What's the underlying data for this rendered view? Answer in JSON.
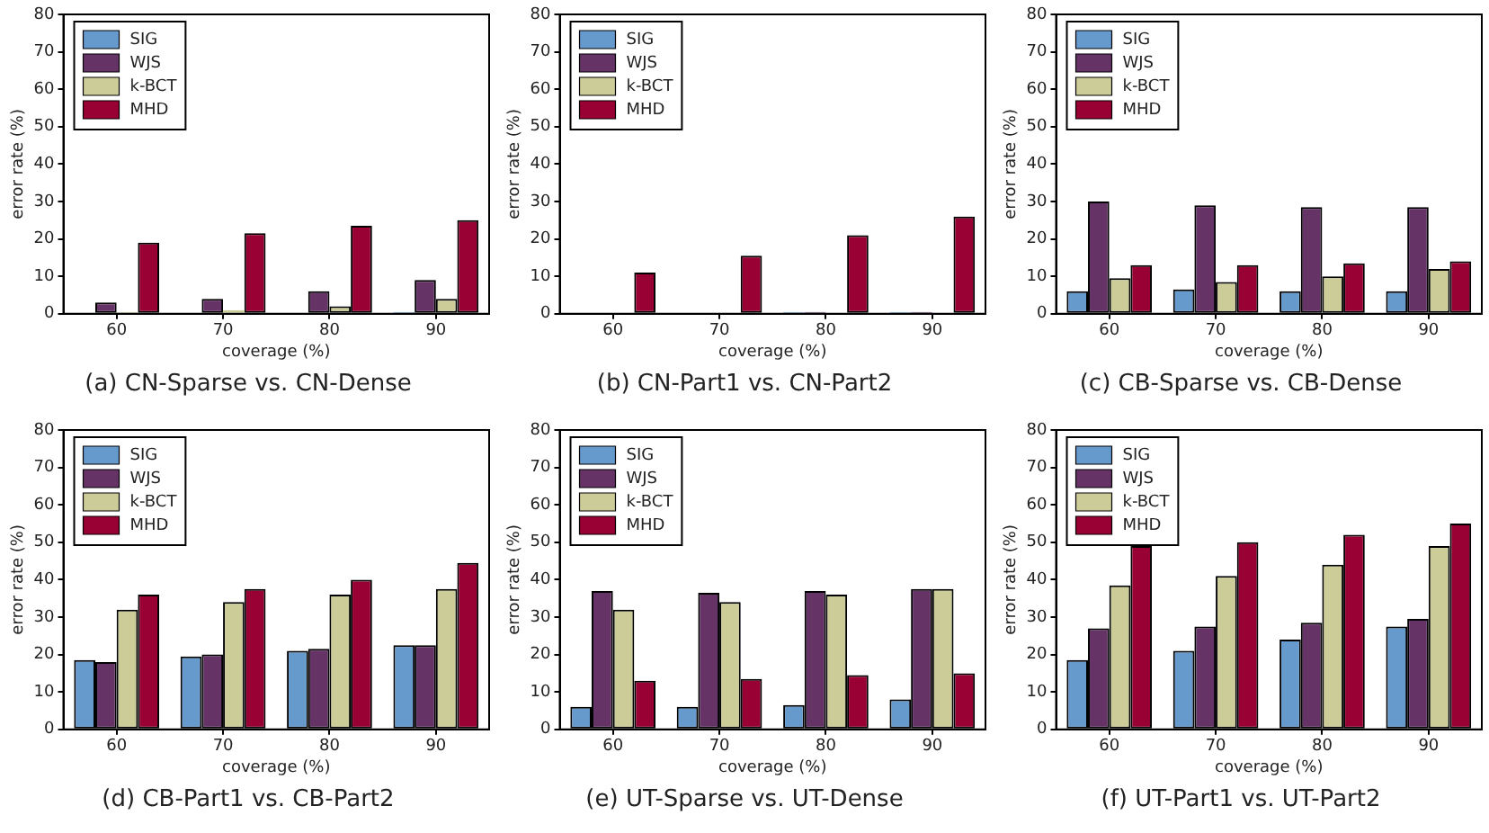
{
  "chart_data": [
    {
      "type": "bar",
      "title": "(a)  CN-Sparse vs. CN-Dense",
      "xlabel": "coverage (%)",
      "ylabel": "error rate (%)",
      "categories": [
        "60",
        "70",
        "80",
        "90"
      ],
      "ylim": [
        0,
        80
      ],
      "yticks": [
        0,
        10,
        20,
        30,
        40,
        50,
        60,
        70,
        80
      ],
      "legend": "top left",
      "grid": false,
      "series": [
        {
          "name": "SIG",
          "color": "#6699cc",
          "values": [
            0,
            0,
            0,
            0.5
          ]
        },
        {
          "name": "WJS",
          "color": "#663366",
          "values": [
            3,
            4,
            6,
            9
          ]
        },
        {
          "name": "k-BCT",
          "color": "#cccc99",
          "values": [
            0.5,
            1,
            2,
            4
          ]
        },
        {
          "name": "MHD",
          "color": "#990033",
          "values": [
            19,
            21.5,
            23.5,
            25
          ]
        }
      ]
    },
    {
      "type": "bar",
      "title": "(b)  CN-Part1 vs. CN-Part2",
      "xlabel": "coverage (%)",
      "ylabel": "error rate (%)",
      "categories": [
        "60",
        "70",
        "80",
        "90"
      ],
      "ylim": [
        0,
        80
      ],
      "yticks": [
        0,
        10,
        20,
        30,
        40,
        50,
        60,
        70,
        80
      ],
      "legend": "top left",
      "grid": false,
      "series": [
        {
          "name": "SIG",
          "color": "#6699cc",
          "values": [
            0,
            0,
            0.5,
            0.5
          ]
        },
        {
          "name": "WJS",
          "color": "#663366",
          "values": [
            0,
            0,
            0.5,
            0.5
          ]
        },
        {
          "name": "k-BCT",
          "color": "#cccc99",
          "values": [
            0,
            0,
            0,
            0
          ]
        },
        {
          "name": "MHD",
          "color": "#990033",
          "values": [
            11,
            15.5,
            21,
            26
          ]
        }
      ]
    },
    {
      "type": "bar",
      "title": "(c)  CB-Sparse vs. CB-Dense",
      "xlabel": "coverage (%)",
      "ylabel": "error rate (%)",
      "categories": [
        "60",
        "70",
        "80",
        "90"
      ],
      "ylim": [
        0,
        80
      ],
      "yticks": [
        0,
        10,
        20,
        30,
        40,
        50,
        60,
        70,
        80
      ],
      "legend": "top left",
      "grid": false,
      "series": [
        {
          "name": "SIG",
          "color": "#6699cc",
          "values": [
            6,
            6.5,
            6,
            6
          ]
        },
        {
          "name": "WJS",
          "color": "#663366",
          "values": [
            30,
            29,
            28.5,
            28.5
          ]
        },
        {
          "name": "k-BCT",
          "color": "#cccc99",
          "values": [
            9.5,
            8.5,
            10,
            12
          ]
        },
        {
          "name": "MHD",
          "color": "#990033",
          "values": [
            13,
            13,
            13.5,
            14
          ]
        }
      ]
    },
    {
      "type": "bar",
      "title": "(d)  CB-Part1 vs. CB-Part2",
      "xlabel": "coverage (%)",
      "ylabel": "error rate (%)",
      "categories": [
        "60",
        "70",
        "80",
        "90"
      ],
      "ylim": [
        0,
        80
      ],
      "yticks": [
        0,
        10,
        20,
        30,
        40,
        50,
        60,
        70,
        80
      ],
      "legend": "top left",
      "grid": false,
      "series": [
        {
          "name": "SIG",
          "color": "#6699cc",
          "values": [
            18.5,
            19.5,
            21,
            22.5
          ]
        },
        {
          "name": "WJS",
          "color": "#663366",
          "values": [
            18,
            20,
            21.5,
            22.5
          ]
        },
        {
          "name": "k-BCT",
          "color": "#cccc99",
          "values": [
            32,
            34,
            36,
            37.5
          ]
        },
        {
          "name": "MHD",
          "color": "#990033",
          "values": [
            36,
            37.5,
            40,
            44.5
          ]
        }
      ]
    },
    {
      "type": "bar",
      "title": "(e)  UT-Sparse vs. UT-Dense",
      "xlabel": "coverage (%)",
      "ylabel": "error rate (%)",
      "categories": [
        "60",
        "70",
        "80",
        "90"
      ],
      "ylim": [
        0,
        80
      ],
      "yticks": [
        0,
        10,
        20,
        30,
        40,
        50,
        60,
        70,
        80
      ],
      "legend": "top left",
      "grid": false,
      "series": [
        {
          "name": "SIG",
          "color": "#6699cc",
          "values": [
            6,
            6,
            6.5,
            8
          ]
        },
        {
          "name": "WJS",
          "color": "#663366",
          "values": [
            37,
            36.5,
            37,
            37.5
          ]
        },
        {
          "name": "k-BCT",
          "color": "#cccc99",
          "values": [
            32,
            34,
            36,
            37.5
          ]
        },
        {
          "name": "MHD",
          "color": "#990033",
          "values": [
            13,
            13.5,
            14.5,
            15
          ]
        }
      ]
    },
    {
      "type": "bar",
      "title": "(f)  UT-Part1 vs. UT-Part2",
      "xlabel": "coverage (%)",
      "ylabel": "error rate (%)",
      "categories": [
        "60",
        "70",
        "80",
        "90"
      ],
      "ylim": [
        0,
        80
      ],
      "yticks": [
        0,
        10,
        20,
        30,
        40,
        50,
        60,
        70,
        80
      ],
      "legend": "top left",
      "grid": false,
      "series": [
        {
          "name": "SIG",
          "color": "#6699cc",
          "values": [
            18.5,
            21,
            24,
            27.5
          ]
        },
        {
          "name": "WJS",
          "color": "#663366",
          "values": [
            27,
            27.5,
            28.5,
            29.5
          ]
        },
        {
          "name": "k-BCT",
          "color": "#cccc99",
          "values": [
            38.5,
            41,
            44,
            49
          ]
        },
        {
          "name": "MHD",
          "color": "#990033",
          "values": [
            49,
            50,
            52,
            55
          ]
        }
      ]
    }
  ]
}
